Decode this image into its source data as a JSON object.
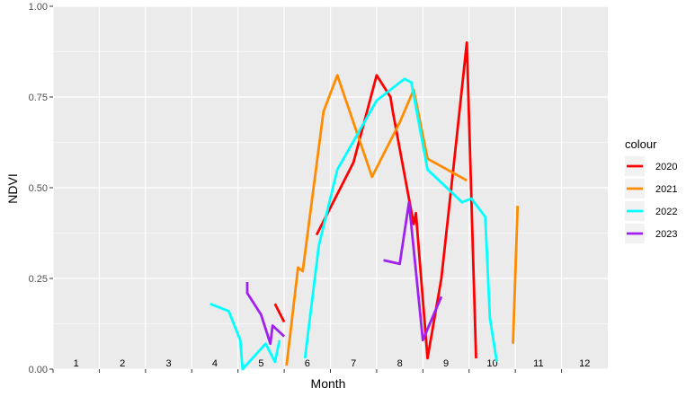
{
  "chart_data": {
    "type": "line",
    "xlabel": "Month",
    "ylabel": "NDVI",
    "ylim": [
      0,
      1
    ],
    "xlim": [
      0.5,
      12.5
    ],
    "y_ticks": [
      "0.00",
      "0.25",
      "0.50",
      "0.75",
      "1.00"
    ],
    "y_tick_values": [
      0,
      0.25,
      0.5,
      0.75,
      1.0
    ],
    "month_labels": [
      "1",
      "2",
      "3",
      "4",
      "5",
      "6",
      "7",
      "8",
      "9",
      "10",
      "11",
      "12"
    ],
    "grid": true,
    "legend": {
      "title": "colour",
      "position": "right"
    },
    "series": [
      {
        "name": "2020",
        "color": "#ff0000",
        "segments": [
          [
            [
              5.3,
              0.18
            ],
            [
              5.5,
              0.13
            ]
          ],
          [
            [
              6.2,
              0.37
            ],
            [
              7.0,
              0.57
            ],
            [
              7.5,
              0.81
            ],
            [
              7.8,
              0.75
            ],
            [
              7.85,
              0.71
            ],
            [
              8.3,
              0.4
            ],
            [
              8.35,
              0.43
            ],
            [
              8.6,
              0.03
            ],
            [
              8.9,
              0.25
            ],
            [
              9.2,
              0.6
            ],
            [
              9.45,
              0.9
            ],
            [
              9.65,
              0.03
            ]
          ]
        ]
      },
      {
        "name": "2021",
        "color": "#ff8c00",
        "segments": [
          [
            [
              5.55,
              0.01
            ],
            [
              5.8,
              0.28
            ],
            [
              5.9,
              0.27
            ],
            [
              6.35,
              0.71
            ],
            [
              6.65,
              0.81
            ],
            [
              7.4,
              0.53
            ],
            [
              8.0,
              0.68
            ],
            [
              8.3,
              0.77
            ],
            [
              8.6,
              0.58
            ],
            [
              9.45,
              0.52
            ]
          ],
          [
            [
              10.45,
              0.07
            ],
            [
              10.55,
              0.45
            ]
          ]
        ]
      },
      {
        "name": "2022",
        "color": "#00ffff",
        "segments": [
          [
            [
              3.9,
              0.18
            ],
            [
              4.3,
              0.16
            ],
            [
              4.55,
              0.08
            ],
            [
              4.6,
              0.0
            ],
            [
              5.1,
              0.07
            ],
            [
              5.3,
              0.02
            ],
            [
              5.4,
              0.08
            ]
          ],
          [
            [
              5.95,
              0.03
            ],
            [
              6.25,
              0.34
            ],
            [
              6.65,
              0.55
            ],
            [
              7.5,
              0.74
            ],
            [
              8.1,
              0.8
            ],
            [
              8.25,
              0.79
            ],
            [
              8.6,
              0.55
            ],
            [
              9.35,
              0.46
            ],
            [
              9.55,
              0.47
            ],
            [
              9.85,
              0.42
            ],
            [
              9.95,
              0.14
            ],
            [
              10.1,
              0.02
            ]
          ]
        ]
      },
      {
        "name": "2023",
        "color": "#a020f0",
        "segments": [
          [
            [
              4.7,
              0.24
            ],
            [
              4.7,
              0.21
            ],
            [
              5.0,
              0.15
            ],
            [
              5.2,
              0.07
            ],
            [
              5.25,
              0.12
            ],
            [
              5.5,
              0.09
            ]
          ],
          [
            [
              7.65,
              0.3
            ],
            [
              8.0,
              0.29
            ],
            [
              8.2,
              0.46
            ],
            [
              8.5,
              0.08
            ],
            [
              8.7,
              0.14
            ],
            [
              8.9,
              0.2
            ]
          ]
        ]
      }
    ]
  }
}
